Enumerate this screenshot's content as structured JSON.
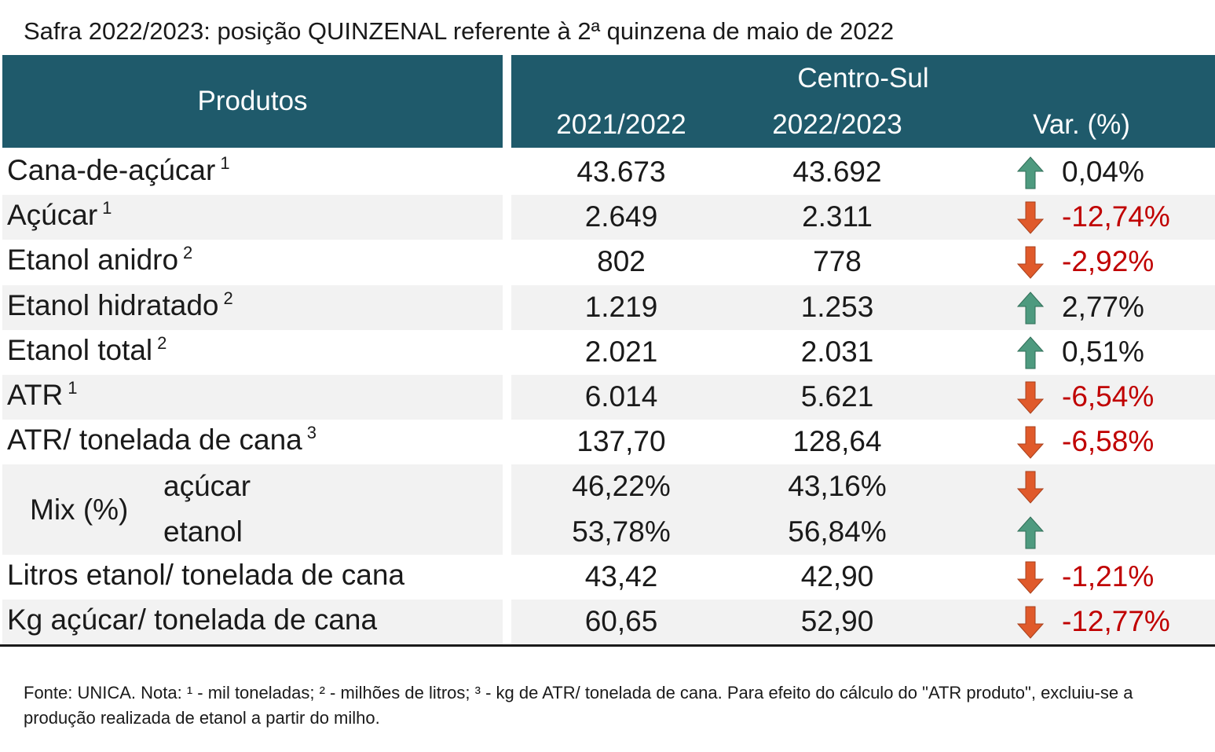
{
  "title": "Safra 2022/2023: posição QUINZENAL referente à 2ª quinzena de maio de 2022",
  "header": {
    "products_label": "Produtos",
    "region": "Centro-Sul",
    "col_prev": "2021/2022",
    "col_curr": "2022/2023",
    "col_var": "Var. (%)"
  },
  "rows": [
    {
      "label": "Cana-de-açúcar",
      "note": "1",
      "prev": "43.673",
      "curr": "43.692",
      "var": "0,04%",
      "direction": "up"
    },
    {
      "label": "Açúcar",
      "note": "1",
      "prev": "2.649",
      "curr": "2.311",
      "var": "-12,74%",
      "direction": "down"
    },
    {
      "label": "Etanol anidro",
      "note": "2",
      "prev": "802",
      "curr": "778",
      "var": "-2,92%",
      "direction": "down"
    },
    {
      "label": "Etanol hidratado",
      "note": "2",
      "prev": "1.219",
      "curr": "1.253",
      "var": "2,77%",
      "direction": "up"
    },
    {
      "label": "Etanol total",
      "note": "2",
      "prev": "2.021",
      "curr": "2.031",
      "var": "0,51%",
      "direction": "up"
    },
    {
      "label": "ATR",
      "note": "1",
      "prev": "6.014",
      "curr": "5.621",
      "var": "-6,54%",
      "direction": "down"
    },
    {
      "label": "ATR/ tonelada de cana",
      "note": "3",
      "prev": "137,70",
      "curr": "128,64",
      "var": "-6,58%",
      "direction": "down"
    }
  ],
  "mix": {
    "label": "Mix (%)",
    "sugar": {
      "label": "açúcar",
      "prev": "46,22%",
      "curr": "43,16%",
      "direction": "down"
    },
    "ethanol": {
      "label": "etanol",
      "prev": "53,78%",
      "curr": "56,84%",
      "direction": "up"
    }
  },
  "rows_after": [
    {
      "label": "Litros etanol/ tonelada de cana",
      "prev": "43,42",
      "curr": "42,90",
      "var": "-1,21%",
      "direction": "down"
    },
    {
      "label": "Kg açúcar/ tonelada de cana",
      "prev": "60,65",
      "curr": "52,90",
      "var": "-12,77%",
      "direction": "down"
    }
  ],
  "footnote": "Fonte: UNICA. Nota: ¹ - mil toneladas; ² - milhões de litros; ³ - kg de ATR/ tonelada de cana. Para efeito do cálculo do \"ATR produto\", excluiu-se a produção realizada de etanol a partir do milho.",
  "colors": {
    "header_bg": "#1f5a6b",
    "arrow_up": "#4e9a7f",
    "arrow_down": "#e05a2b",
    "negative_text": "#c00000"
  }
}
